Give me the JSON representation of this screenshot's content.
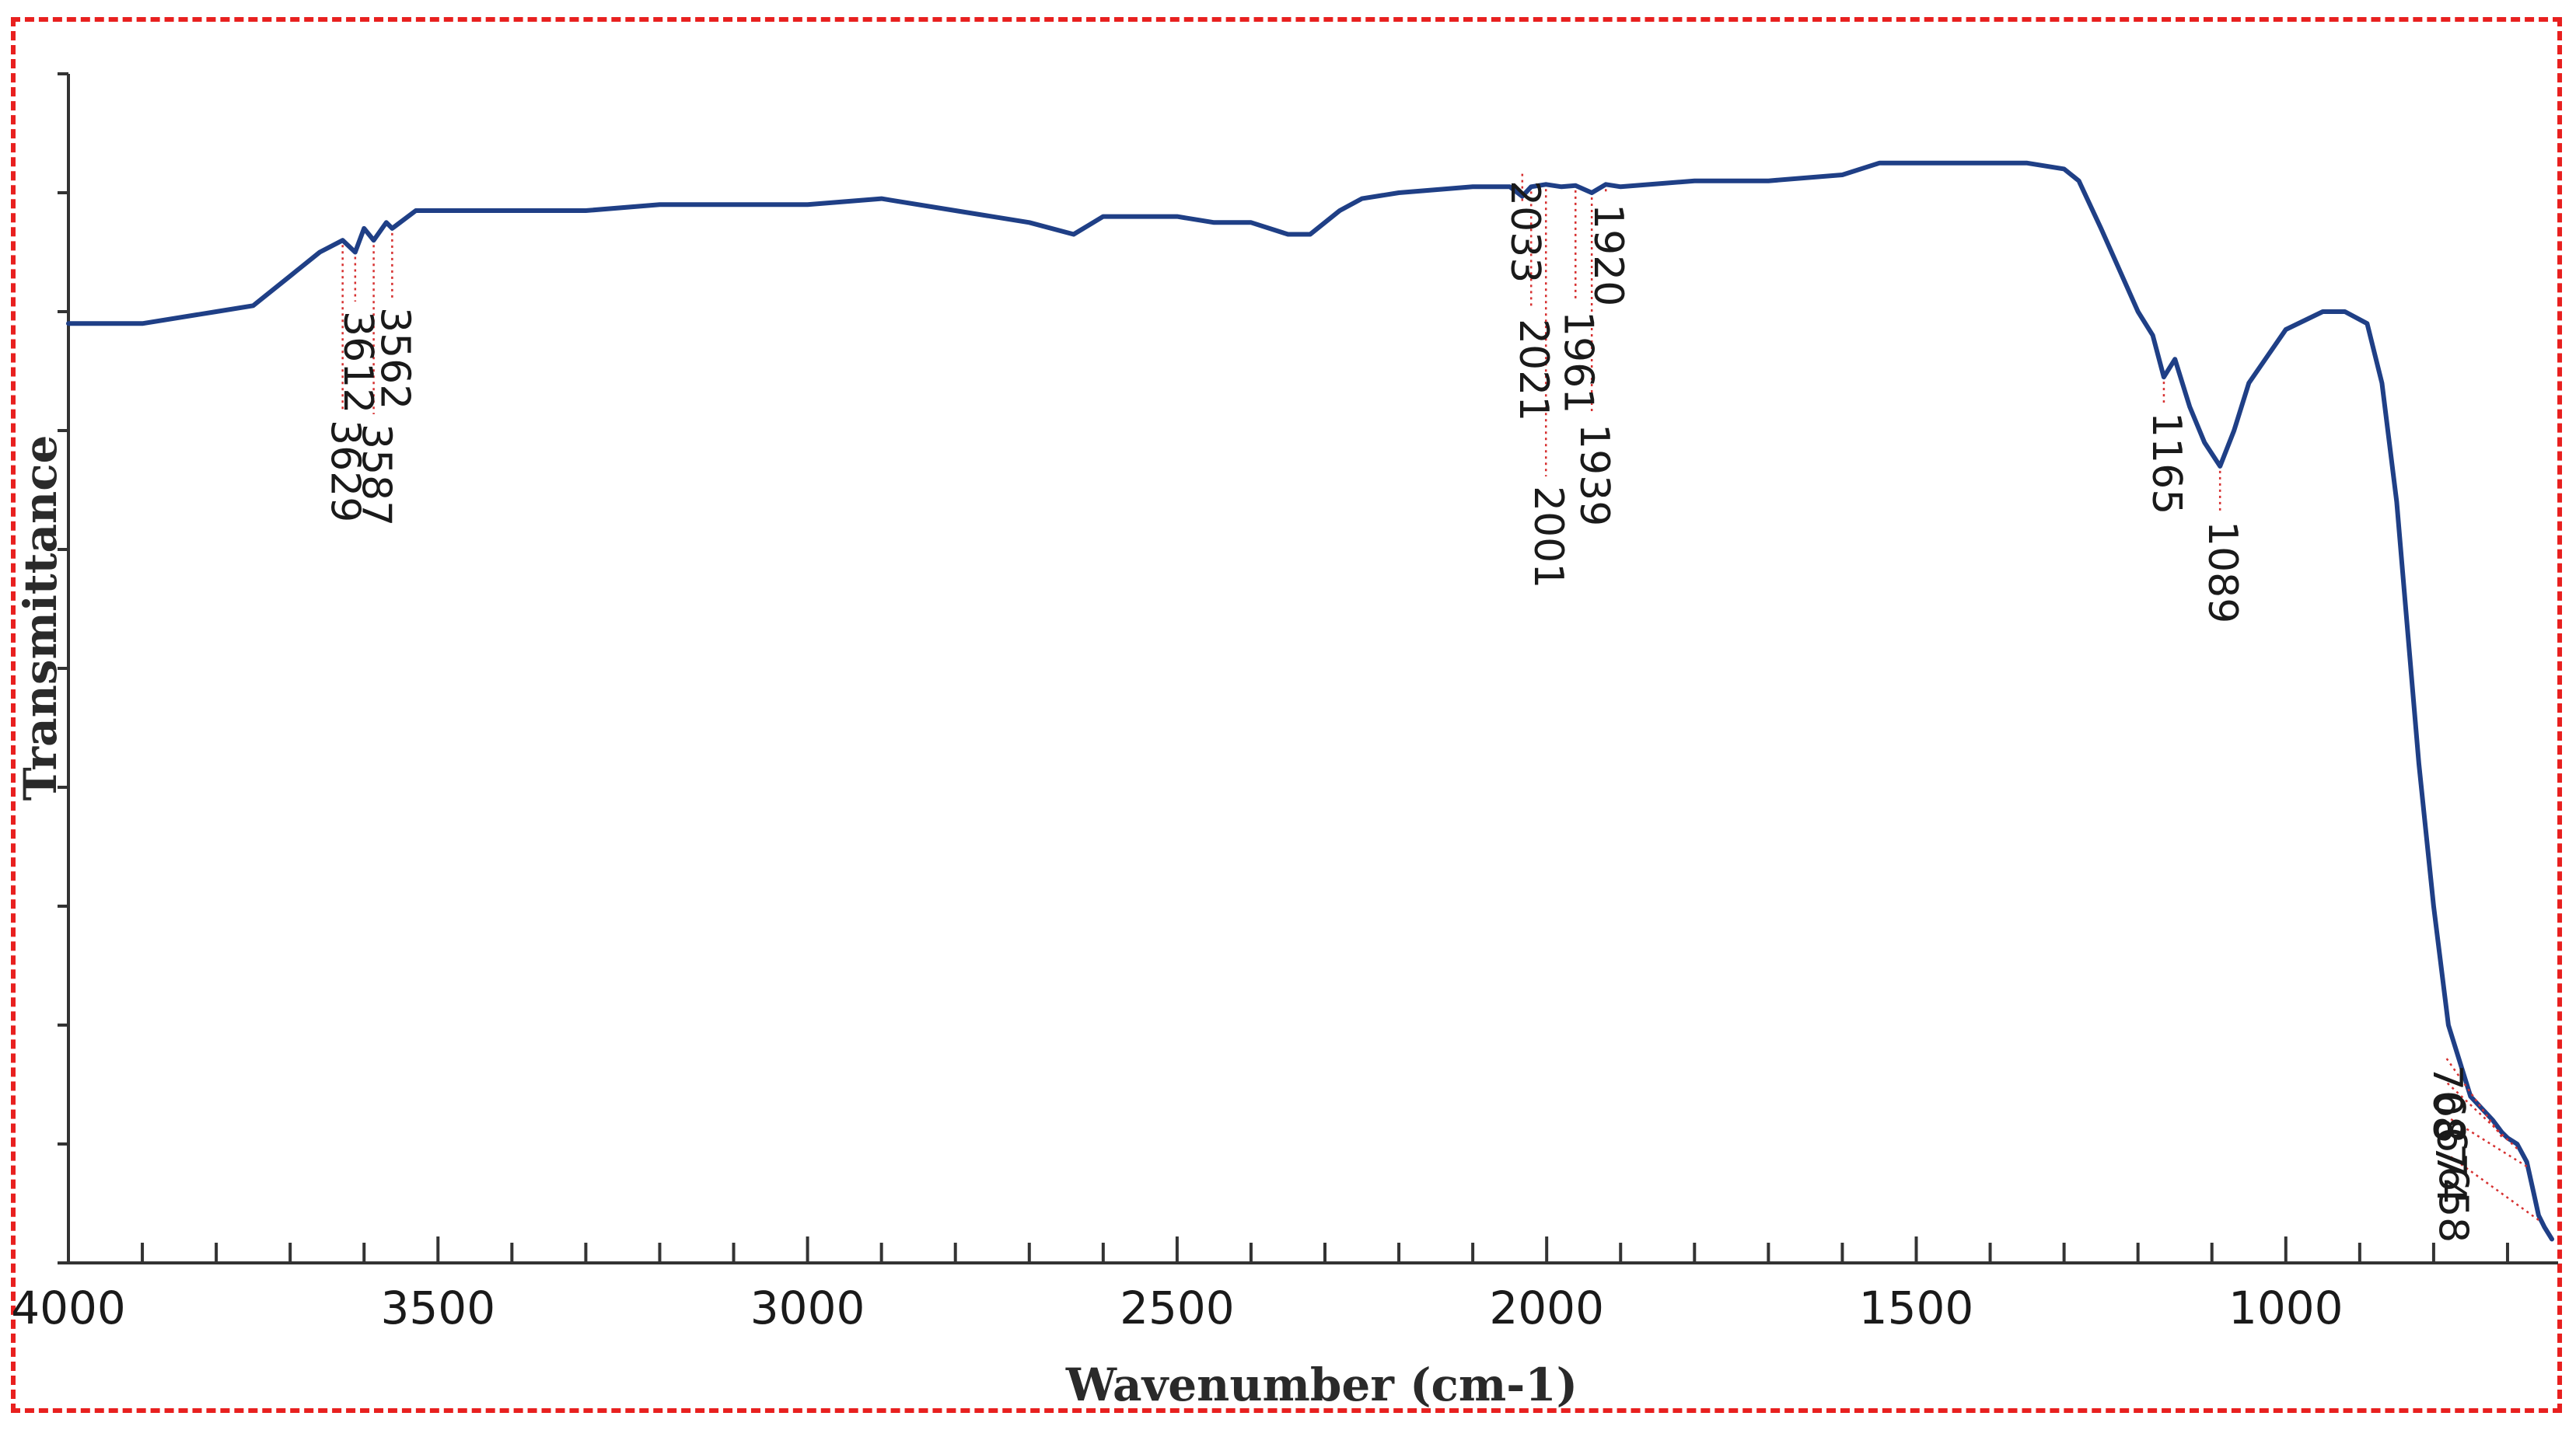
{
  "chart_data": {
    "type": "line",
    "title": "",
    "xlabel": "Wavenumber (cm-1)",
    "ylabel": "Transmittance",
    "x_reversed": true,
    "xlim": [
      4000,
      640
    ],
    "ylim": [
      0,
      100
    ],
    "x_ticks": [
      4000,
      3500,
      3000,
      2500,
      2000,
      1500,
      1000
    ],
    "grid": false,
    "legend": "none",
    "line_color": "#1f3f86",
    "frame_color": "#e8201f",
    "leader_color": "#d63030",
    "series": [
      {
        "x": [
          4000,
          3900,
          3800,
          3750,
          3700,
          3660,
          3629,
          3612,
          3600,
          3587,
          3570,
          3562,
          3530,
          3500,
          3400,
          3300,
          3200,
          3100,
          3000,
          2900,
          2800,
          2700,
          2640,
          2600,
          2500,
          2450,
          2400,
          2350,
          2320,
          2280,
          2250,
          2200,
          2100,
          2050,
          2033,
          2021,
          2001,
          1980,
          1961,
          1939,
          1920,
          1900,
          1800,
          1700,
          1600,
          1550,
          1500,
          1400,
          1350,
          1300,
          1280,
          1250,
          1200,
          1180,
          1165,
          1150,
          1130,
          1110,
          1089,
          1070,
          1050,
          1000,
          950,
          920,
          890,
          870,
          850,
          820,
          800,
          780,
          750,
          720,
          708,
          700,
          687,
          674,
          665,
          658,
          650,
          640
        ],
        "y": [
          79,
          79,
          80,
          80.5,
          83,
          85,
          86,
          85,
          87,
          86,
          87.5,
          87,
          88.5,
          88.5,
          88.5,
          88.5,
          89,
          89,
          89,
          89.5,
          88.5,
          87.5,
          86.5,
          88,
          88,
          87.5,
          87.5,
          86.5,
          86.5,
          88.5,
          89.5,
          90,
          90.5,
          90.5,
          89.7,
          90.5,
          90.7,
          90.5,
          90.6,
          90,
          90.7,
          90.5,
          91,
          91,
          91.5,
          92.5,
          92.5,
          92.5,
          92.5,
          92,
          91,
          87,
          80,
          78,
          74.5,
          76,
          72,
          69,
          67,
          70,
          74,
          78.5,
          80,
          80,
          79,
          74,
          64,
          42,
          30,
          20,
          14,
          12,
          11,
          10.5,
          10,
          8.5,
          6,
          4,
          3,
          2
        ]
      }
    ],
    "annotations": [
      {
        "label": "3629",
        "x": 3629
      },
      {
        "label": "3612",
        "x": 3612
      },
      {
        "label": "3587",
        "x": 3587
      },
      {
        "label": "3562",
        "x": 3562
      },
      {
        "label": "2033",
        "x": 2033
      },
      {
        "label": "2021",
        "x": 2021
      },
      {
        "label": "2001",
        "x": 2001
      },
      {
        "label": "1961",
        "x": 1961
      },
      {
        "label": "1939",
        "x": 1939
      },
      {
        "label": "1920",
        "x": 1920
      },
      {
        "label": "1165",
        "x": 1165
      },
      {
        "label": "1089",
        "x": 1089
      },
      {
        "label": "708",
        "x": 708
      },
      {
        "label": "687",
        "x": 687
      },
      {
        "label": "674",
        "x": 674
      },
      {
        "label": "658",
        "x": 658
      }
    ]
  }
}
